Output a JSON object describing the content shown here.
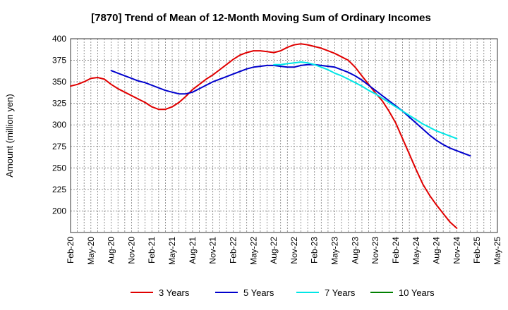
{
  "chart_data": {
    "type": "line",
    "title": "[7870]  Trend of Mean of 12-Month Moving Sum of Ordinary Incomes",
    "xlabel": "",
    "ylabel": "Amount (million yen)",
    "ylim": [
      175,
      400
    ],
    "yticks": [
      200,
      225,
      250,
      275,
      300,
      325,
      350,
      375,
      400
    ],
    "xticks": [
      "Feb-20",
      "May-20",
      "Aug-20",
      "Nov-20",
      "Feb-21",
      "May-21",
      "Aug-21",
      "Nov-21",
      "Feb-22",
      "May-22",
      "Aug-22",
      "Nov-22",
      "Feb-23",
      "May-23",
      "Aug-23",
      "Nov-23",
      "Feb-24",
      "May-24",
      "Aug-24",
      "Nov-24",
      "Feb-25",
      "May-25"
    ],
    "grid": true,
    "legend_position": "bottom",
    "series": [
      {
        "name": "3 Years",
        "color": "#e00000",
        "start_index": 0,
        "values": [
          345,
          347,
          350,
          354,
          355,
          353,
          347,
          342,
          338,
          334,
          330,
          326,
          321,
          318,
          318,
          321,
          326,
          333,
          341,
          347,
          353,
          358,
          364,
          370,
          376,
          381,
          384,
          386,
          386,
          385,
          384,
          386,
          390,
          393,
          394,
          393,
          391,
          389,
          386,
          383,
          379,
          375,
          367,
          357,
          347,
          337,
          328,
          316,
          302,
          284,
          266,
          248,
          231,
          218,
          207,
          197,
          187,
          180
        ]
      },
      {
        "name": "5 Years",
        "color": "#0000cc",
        "start_index": 6,
        "values": [
          363,
          360,
          357,
          354,
          351,
          349,
          346,
          343,
          340,
          338,
          336,
          336,
          338,
          342,
          346,
          350,
          353,
          356,
          359,
          362,
          365,
          367,
          368,
          369,
          369,
          368,
          367,
          367,
          369,
          370,
          370,
          369,
          368,
          367,
          364,
          361,
          357,
          352,
          346,
          340,
          334,
          328,
          322,
          316,
          309,
          302,
          295,
          288,
          282,
          277,
          273,
          270,
          267,
          264
        ]
      },
      {
        "name": "7 Years",
        "color": "#00e6e6",
        "start_index": 30,
        "values": [
          370,
          370,
          371,
          372,
          373,
          372,
          370,
          367,
          364,
          360,
          357,
          353,
          349,
          345,
          340,
          336,
          331,
          326,
          321,
          316,
          311,
          306,
          301,
          297,
          293,
          290,
          287,
          284
        ]
      },
      {
        "name": "10 Years",
        "color": "#008000",
        "start_index": 0,
        "values": []
      }
    ]
  }
}
